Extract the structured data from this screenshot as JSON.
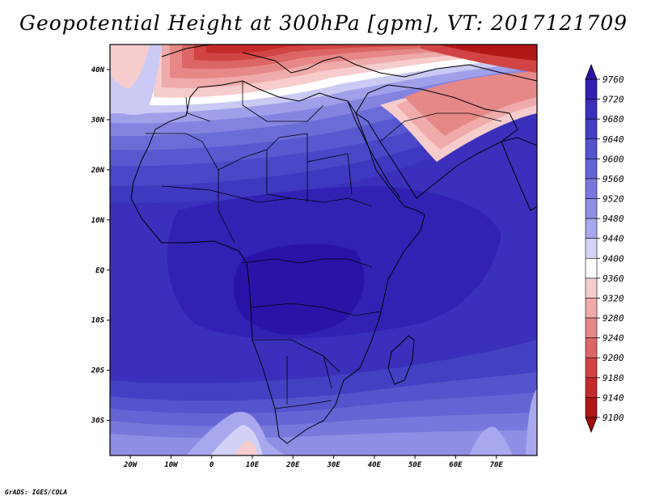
{
  "title": "Geopotential Height at 300hPa [gpm], VT: 2017121709",
  "credit": "GrADS: IGES/COLA",
  "map": {
    "region": "Africa",
    "lon_range": [
      -25,
      80
    ],
    "lat_range": [
      -37,
      45
    ],
    "lon_ticks": [
      "20W",
      "10W",
      "0",
      "10E",
      "20E",
      "30E",
      "40E",
      "50E",
      "60E",
      "70E"
    ],
    "lat_ticks": [
      "40N",
      "30N",
      "20N",
      "10N",
      "EQ",
      "10S",
      "20S",
      "30S"
    ]
  },
  "colorbar": {
    "levels": [
      "9760",
      "9720",
      "9680",
      "9640",
      "9600",
      "9560",
      "9520",
      "9480",
      "9440",
      "9400",
      "9360",
      "9320",
      "9280",
      "9240",
      "9200",
      "9180",
      "9140",
      "9100"
    ],
    "colors": [
      "#2a14a8",
      "#3222b4",
      "#3a30bc",
      "#4440c4",
      "#5454cc",
      "#6464d4",
      "#7878dc",
      "#8e8ee4",
      "#a8a8ee",
      "#d2d2f6",
      "#ffffff",
      "#f6cccc",
      "#efaaaa",
      "#e68888",
      "#dc6666",
      "#d24444",
      "#c42a2a",
      "#b01818",
      "#a00c0c"
    ]
  }
}
